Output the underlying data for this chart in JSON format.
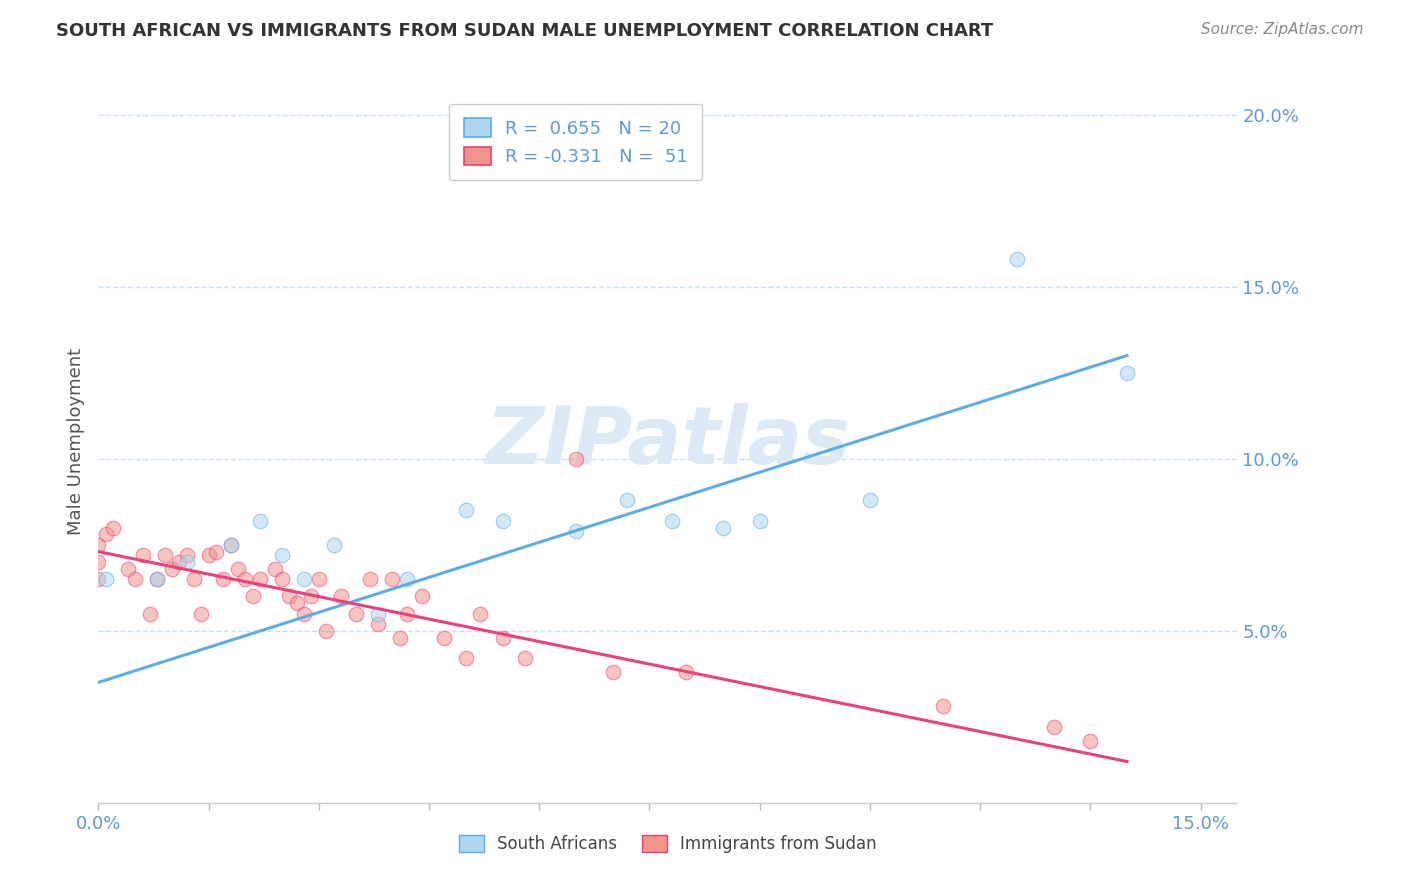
{
  "title": "SOUTH AFRICAN VS IMMIGRANTS FROM SUDAN MALE UNEMPLOYMENT CORRELATION CHART",
  "source": "Source: ZipAtlas.com",
  "ylabel": "Male Unemployment",
  "xlabel": "",
  "xlim": [
    0.0,
    0.155
  ],
  "ylim": [
    0.0,
    0.21
  ],
  "yticks": [
    0.05,
    0.1,
    0.15,
    0.2
  ],
  "ytick_labels": [
    "5.0%",
    "10.0%",
    "15.0%",
    "20.0%"
  ],
  "xticks": [
    0.0,
    0.15
  ],
  "xtick_labels": [
    "0.0%",
    "15.0%"
  ],
  "legend_blue_r": "R =  0.655",
  "legend_blue_n": "N = 20",
  "legend_pink_r": "R = -0.331",
  "legend_pink_n": "N =  51",
  "blue_color": "#AED6F1",
  "pink_color": "#F1948A",
  "line_blue_color": "#5DADE2",
  "line_pink_color": "#EC407A",
  "watermark": "ZIPatlas",
  "south_africans_x": [
    0.001,
    0.008,
    0.012,
    0.018,
    0.022,
    0.025,
    0.028,
    0.032,
    0.038,
    0.042,
    0.05,
    0.055,
    0.065,
    0.072,
    0.078,
    0.085,
    0.09,
    0.105,
    0.125,
    0.14
  ],
  "south_africans_y": [
    0.065,
    0.065,
    0.07,
    0.075,
    0.082,
    0.072,
    0.065,
    0.075,
    0.055,
    0.065,
    0.085,
    0.082,
    0.079,
    0.088,
    0.082,
    0.08,
    0.082,
    0.088,
    0.158,
    0.125
  ],
  "sudan_x": [
    0.0,
    0.0,
    0.0,
    0.001,
    0.002,
    0.004,
    0.005,
    0.006,
    0.007,
    0.008,
    0.009,
    0.01,
    0.011,
    0.012,
    0.013,
    0.014,
    0.015,
    0.016,
    0.017,
    0.018,
    0.019,
    0.02,
    0.021,
    0.022,
    0.024,
    0.025,
    0.026,
    0.027,
    0.028,
    0.029,
    0.03,
    0.031,
    0.033,
    0.035,
    0.037,
    0.038,
    0.04,
    0.041,
    0.042,
    0.044,
    0.047,
    0.05,
    0.052,
    0.055,
    0.058,
    0.065,
    0.07,
    0.08,
    0.115,
    0.13,
    0.135
  ],
  "sudan_y": [
    0.065,
    0.07,
    0.075,
    0.078,
    0.08,
    0.068,
    0.065,
    0.072,
    0.055,
    0.065,
    0.072,
    0.068,
    0.07,
    0.072,
    0.065,
    0.055,
    0.072,
    0.073,
    0.065,
    0.075,
    0.068,
    0.065,
    0.06,
    0.065,
    0.068,
    0.065,
    0.06,
    0.058,
    0.055,
    0.06,
    0.065,
    0.05,
    0.06,
    0.055,
    0.065,
    0.052,
    0.065,
    0.048,
    0.055,
    0.06,
    0.048,
    0.042,
    0.055,
    0.048,
    0.042,
    0.1,
    0.038,
    0.038,
    0.028,
    0.022,
    0.018
  ],
  "blue_trend_x": [
    0.0,
    0.14
  ],
  "blue_trend_y": [
    0.035,
    0.13
  ],
  "pink_trend_x": [
    0.0,
    0.14
  ],
  "pink_trend_y": [
    0.073,
    0.012
  ],
  "background_color": "#FFFFFF",
  "title_color": "#333333",
  "tick_color": "#5B9BD5",
  "source_color": "#888888",
  "grid_color": "#C5D9F1",
  "watermark_color": "#DCE9F7"
}
